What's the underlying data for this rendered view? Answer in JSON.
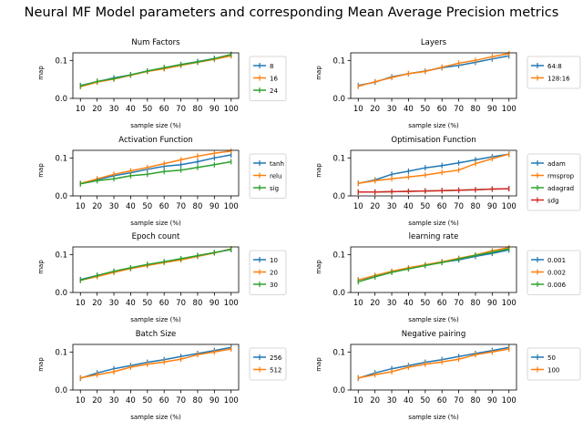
{
  "figure": {
    "suptitle": "Neural MF Model parameters and corresponding Mean Average Precision metrics"
  },
  "colors": {
    "blue": "#1f77b4",
    "orange": "#ff7f0e",
    "green": "#2ca02c",
    "red": "#d62728"
  },
  "chart_data": [
    {
      "type": "line",
      "title": "Num Factors",
      "xlabel": "sample size (%)",
      "ylabel": "map",
      "x": [
        10,
        20,
        30,
        40,
        50,
        60,
        70,
        80,
        90,
        100
      ],
      "ylim": [
        0,
        0.12
      ],
      "yticks": [
        0.0,
        0.1
      ],
      "legend_loc": "right-outside",
      "series": [
        {
          "name": "8",
          "color": "blue",
          "values": [
            0.034,
            0.044,
            0.054,
            0.062,
            0.072,
            0.081,
            0.089,
            0.097,
            0.105,
            0.115
          ]
        },
        {
          "name": "16",
          "color": "orange",
          "values": [
            0.031,
            0.043,
            0.051,
            0.061,
            0.071,
            0.078,
            0.087,
            0.095,
            0.103,
            0.112
          ]
        },
        {
          "name": "24",
          "color": "green",
          "values": [
            0.033,
            0.045,
            0.052,
            0.062,
            0.072,
            0.081,
            0.089,
            0.096,
            0.105,
            0.116
          ]
        }
      ]
    },
    {
      "type": "line",
      "title": "Layers",
      "xlabel": "sample size (%)",
      "ylabel": "map",
      "x": [
        10,
        20,
        30,
        40,
        50,
        60,
        70,
        80,
        90,
        100
      ],
      "ylim": [
        0,
        0.12
      ],
      "yticks": [
        0.0,
        0.1
      ],
      "legend_loc": "right-outside",
      "series": [
        {
          "name": "64:8",
          "color": "blue",
          "values": [
            0.034,
            0.043,
            0.057,
            0.065,
            0.072,
            0.081,
            0.087,
            0.095,
            0.104,
            0.112
          ]
        },
        {
          "name": "128:16",
          "color": "orange",
          "values": [
            0.032,
            0.044,
            0.055,
            0.065,
            0.071,
            0.082,
            0.093,
            0.1,
            0.11,
            0.118
          ]
        }
      ]
    },
    {
      "type": "line",
      "title": "Activation Function",
      "xlabel": "sample size (%)",
      "ylabel": "map",
      "x": [
        10,
        20,
        30,
        40,
        50,
        60,
        70,
        80,
        90,
        100
      ],
      "ylim": [
        0,
        0.12
      ],
      "yticks": [
        0.0,
        0.1
      ],
      "legend_loc": "right-outside",
      "series": [
        {
          "name": "tanh",
          "color": "blue",
          "values": [
            0.032,
            0.043,
            0.053,
            0.061,
            0.07,
            0.078,
            0.082,
            0.09,
            0.1,
            0.108
          ]
        },
        {
          "name": "relu",
          "color": "orange",
          "values": [
            0.033,
            0.045,
            0.057,
            0.066,
            0.075,
            0.085,
            0.095,
            0.105,
            0.112,
            0.118
          ]
        },
        {
          "name": "sig",
          "color": "green",
          "values": [
            0.032,
            0.04,
            0.045,
            0.053,
            0.057,
            0.064,
            0.068,
            0.075,
            0.082,
            0.09
          ]
        }
      ]
    },
    {
      "type": "line",
      "title": "Optimisation Function",
      "xlabel": "sample size (%)",
      "ylabel": "map",
      "x": [
        10,
        20,
        30,
        40,
        50,
        60,
        70,
        80,
        90,
        100
      ],
      "ylim": [
        0,
        0.12
      ],
      "yticks": [
        0.0,
        0.1
      ],
      "legend_loc": "right-outside",
      "series": [
        {
          "name": "adam",
          "color": "blue",
          "values": [
            0.033,
            0.042,
            0.057,
            0.065,
            0.074,
            0.08,
            0.087,
            0.095,
            0.103,
            0.11
          ]
        },
        {
          "name": "rmsprop",
          "color": "orange",
          "values": [
            0.033,
            0.04,
            0.045,
            0.05,
            0.055,
            0.062,
            0.068,
            0.085,
            0.098,
            0.11
          ]
        },
        {
          "name": "adagrad",
          "color": "green",
          "values": [
            0.01,
            0.01,
            0.011,
            0.012,
            0.013,
            0.014,
            0.015,
            0.016,
            0.018,
            0.019
          ]
        },
        {
          "name": "sdg",
          "color": "red",
          "values": [
            0.01,
            0.01,
            0.011,
            0.012,
            0.013,
            0.014,
            0.015,
            0.016,
            0.018,
            0.019
          ]
        }
      ]
    },
    {
      "type": "line",
      "title": "Epoch count",
      "xlabel": "sample size (%)",
      "ylabel": "map",
      "x": [
        10,
        20,
        30,
        40,
        50,
        60,
        70,
        80,
        90,
        100
      ],
      "ylim": [
        0,
        0.12
      ],
      "yticks": [
        0.0,
        0.1
      ],
      "legend_loc": "right-outside",
      "series": [
        {
          "name": "10",
          "color": "blue",
          "values": [
            0.034,
            0.045,
            0.055,
            0.063,
            0.072,
            0.08,
            0.088,
            0.097,
            0.105,
            0.113
          ]
        },
        {
          "name": "20",
          "color": "orange",
          "values": [
            0.032,
            0.042,
            0.053,
            0.063,
            0.071,
            0.079,
            0.086,
            0.095,
            0.104,
            0.115
          ]
        },
        {
          "name": "30",
          "color": "green",
          "values": [
            0.032,
            0.045,
            0.056,
            0.065,
            0.074,
            0.081,
            0.089,
            0.097,
            0.105,
            0.114
          ]
        }
      ]
    },
    {
      "type": "line",
      "title": "learning rate",
      "xlabel": "sample size (%)",
      "ylabel": "map",
      "x": [
        10,
        20,
        30,
        40,
        50,
        60,
        70,
        80,
        90,
        100
      ],
      "ylim": [
        0,
        0.12
      ],
      "yticks": [
        0.0,
        0.1
      ],
      "legend_loc": "right-outside",
      "series": [
        {
          "name": "0.001",
          "color": "blue",
          "values": [
            0.033,
            0.043,
            0.055,
            0.063,
            0.071,
            0.08,
            0.086,
            0.095,
            0.103,
            0.112
          ]
        },
        {
          "name": "0.002",
          "color": "orange",
          "values": [
            0.033,
            0.045,
            0.056,
            0.065,
            0.073,
            0.081,
            0.09,
            0.099,
            0.11,
            0.118
          ]
        },
        {
          "name": "0.006",
          "color": "green",
          "values": [
            0.028,
            0.041,
            0.053,
            0.062,
            0.071,
            0.079,
            0.088,
            0.098,
            0.106,
            0.115
          ]
        }
      ]
    },
    {
      "type": "line",
      "title": "Batch Size",
      "xlabel": "sample size (%)",
      "ylabel": "map",
      "x": [
        10,
        20,
        30,
        40,
        50,
        60,
        70,
        80,
        90,
        100
      ],
      "ylim": [
        0,
        0.12
      ],
      "yticks": [
        0.0,
        0.1
      ],
      "legend_loc": "right-outside",
      "series": [
        {
          "name": "256",
          "color": "blue",
          "values": [
            0.031,
            0.045,
            0.056,
            0.064,
            0.073,
            0.08,
            0.088,
            0.096,
            0.104,
            0.112
          ]
        },
        {
          "name": "512",
          "color": "orange",
          "values": [
            0.032,
            0.04,
            0.048,
            0.06,
            0.068,
            0.074,
            0.081,
            0.093,
            0.1,
            0.108
          ]
        }
      ]
    },
    {
      "type": "line",
      "title": "Negative pairing",
      "xlabel": "sample size (%)",
      "ylabel": "map",
      "x": [
        10,
        20,
        30,
        40,
        50,
        60,
        70,
        80,
        90,
        100
      ],
      "ylim": [
        0,
        0.12
      ],
      "yticks": [
        0.0,
        0.1
      ],
      "legend_loc": "right-outside",
      "series": [
        {
          "name": "50",
          "color": "blue",
          "values": [
            0.031,
            0.045,
            0.056,
            0.064,
            0.073,
            0.08,
            0.088,
            0.096,
            0.104,
            0.112
          ]
        },
        {
          "name": "100",
          "color": "orange",
          "values": [
            0.032,
            0.04,
            0.048,
            0.06,
            0.068,
            0.074,
            0.081,
            0.093,
            0.1,
            0.108
          ]
        }
      ]
    }
  ]
}
